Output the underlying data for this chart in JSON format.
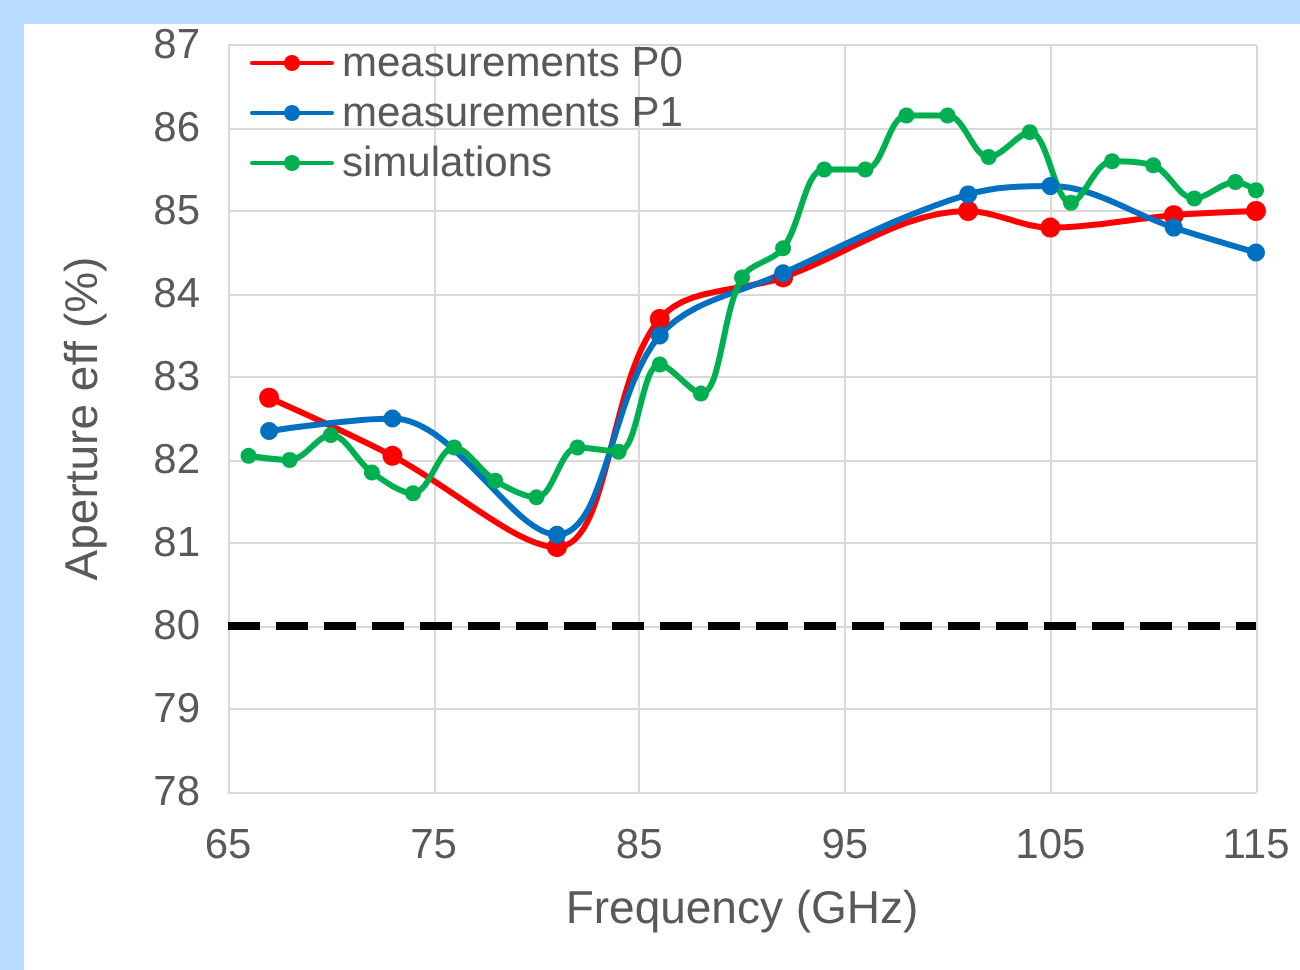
{
  "chart_data": {
    "type": "line",
    "xlabel": "Frequency (GHz)",
    "ylabel": "Aperture eff (%)",
    "xlim": [
      65,
      115
    ],
    "xticks": [
      65,
      75,
      85,
      95,
      105,
      115
    ],
    "ylim": [
      78,
      87
    ],
    "yticks": [
      78,
      79,
      80,
      81,
      82,
      83,
      84,
      85,
      86,
      87
    ],
    "grid": true,
    "legend": "top left",
    "marker": "circle",
    "line_style": "solid",
    "series": [
      {
        "name": "measurements P0",
        "color": "#ff0000",
        "x": [
          67,
          73,
          81,
          86,
          92,
          101,
          105,
          111,
          115
        ],
        "values": [
          82.75,
          82.05,
          80.95,
          83.7,
          84.2,
          85.0,
          84.8,
          84.95,
          85.0
        ]
      },
      {
        "name": "measurements P1",
        "color": "#0070c0",
        "x": [
          67,
          73,
          81,
          86,
          92,
          101,
          105,
          111,
          115
        ],
        "values": [
          82.35,
          82.5,
          81.1,
          83.5,
          84.25,
          85.2,
          85.3,
          84.8,
          84.5
        ]
      },
      {
        "name": "simulations",
        "color": "#00b050",
        "x": [
          66,
          68,
          70,
          72,
          74,
          76,
          78,
          80,
          82,
          84,
          86,
          88,
          90,
          92,
          94,
          96,
          98,
          100,
          102,
          104,
          106,
          108,
          110,
          112,
          114,
          115
        ],
        "values": [
          82.05,
          82.0,
          82.3,
          81.85,
          81.6,
          82.15,
          81.75,
          81.55,
          82.15,
          82.1,
          83.15,
          82.8,
          84.2,
          84.55,
          85.5,
          85.5,
          86.15,
          86.15,
          85.65,
          85.95,
          85.1,
          85.6,
          85.55,
          85.15,
          85.35,
          85.25
        ]
      }
    ],
    "ref_lines": [
      {
        "axis": "y",
        "value": 80,
        "color": "#000000",
        "line_style": "dashed"
      }
    ]
  }
}
